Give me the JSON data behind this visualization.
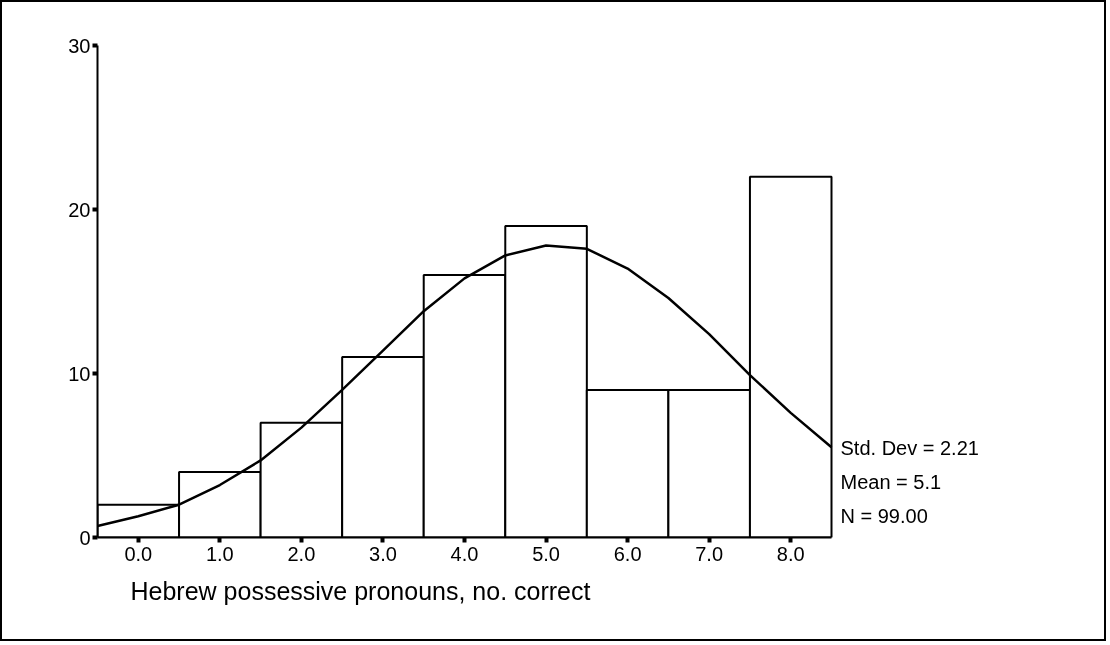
{
  "chart_data": {
    "type": "histogram",
    "xlabel": "Hebrew possessive pronouns, no. correct",
    "bins": [
      -0.5,
      0.5,
      1.5,
      2.5,
      3.5,
      4.5,
      5.5,
      6.5,
      7.5,
      8.5
    ],
    "values": [
      2,
      4,
      7,
      11,
      16,
      19,
      9,
      9,
      22
    ],
    "color": "#ffffff",
    "series": [
      {
        "type": "line",
        "color": "#000000",
        "x": [
          -0.5,
          0,
          0.5,
          1,
          1.5,
          2,
          2.5,
          3,
          3.5,
          4,
          4.5,
          5,
          5.5,
          6,
          6.5,
          7,
          7.5,
          8,
          8.5
        ],
        "values": [
          0.7,
          1.3,
          2,
          3.2,
          4.7,
          6.7,
          9,
          11.4,
          13.8,
          15.8,
          17.2,
          17.8,
          17.6,
          16.4,
          14.6,
          12.4,
          9.9,
          7.6,
          5.5
        ]
      }
    ],
    "xlim": [
      -0.5,
      8.5
    ],
    "ylim": [
      0,
      30
    ],
    "xticks": [
      {
        "value": 0,
        "label": "0.0"
      },
      {
        "value": 1,
        "label": "1.0"
      },
      {
        "value": 2,
        "label": "2.0"
      },
      {
        "value": 3,
        "label": "3.0"
      },
      {
        "value": 4,
        "label": "4.0"
      },
      {
        "value": 5,
        "label": "5.0"
      },
      {
        "value": 6,
        "label": "6.0"
      },
      {
        "value": 7,
        "label": "7.0"
      },
      {
        "value": 8,
        "label": "8.0"
      }
    ],
    "yticks": [
      0,
      10,
      20,
      30
    ],
    "annotations": [
      "Std. Dev = 2.21",
      "Mean = 5.1",
      "N = 99.00"
    ]
  }
}
